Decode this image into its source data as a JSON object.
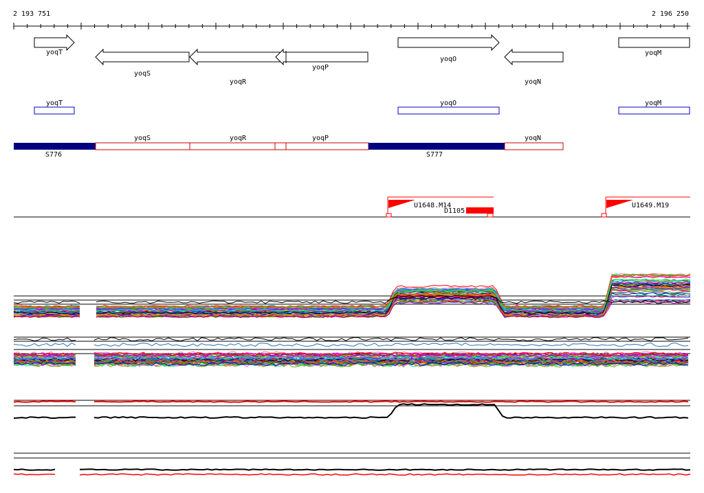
{
  "ruler": {
    "start_label": "2 193 751",
    "end_label": "2 196 250"
  },
  "genes": [
    {
      "name": "yoqT",
      "strand": "+"
    },
    {
      "name": "yoqS",
      "strand": "-"
    },
    {
      "name": "yoqR",
      "strand": "-"
    },
    {
      "name": "yoqP",
      "strand": "-"
    },
    {
      "name": "yoqO",
      "strand": "+"
    },
    {
      "name": "yoqN",
      "strand": "-"
    },
    {
      "name": "yoqM",
      "strand": "+"
    }
  ],
  "track_blue_labels": [
    "yoqT",
    "yoqO",
    "yoqM"
  ],
  "track_red": {
    "gene_labels": [
      "yoqS",
      "yoqR",
      "yoqP",
      "yoqN"
    ],
    "segment_labels": [
      "S776",
      "S777"
    ],
    "colors": {
      "segment": "#000080",
      "outline": "#cc0000"
    }
  },
  "features": {
    "labels": [
      "U1648.M14",
      "D1105",
      "U1649.M19"
    ],
    "color": "#ff0000"
  },
  "profile_panels": [
    {
      "id": "panel-1",
      "trace_colors": "multicolor"
    },
    {
      "id": "panel-2",
      "trace_colors": "multicolor"
    },
    {
      "id": "panel-3",
      "trace_colors": [
        "#000000",
        "#ff0000"
      ]
    },
    {
      "id": "panel-4",
      "trace_colors": [
        "#000000",
        "#ff0000"
      ]
    }
  ]
}
